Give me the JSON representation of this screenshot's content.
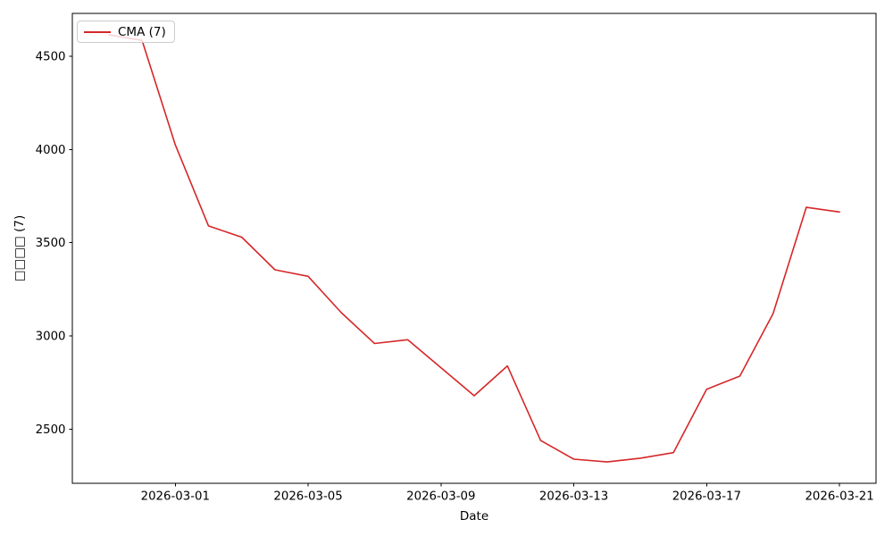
{
  "figure": {
    "background": "#ffffff",
    "plot_border_color": "#000000"
  },
  "chart_data": {
    "type": "line",
    "title": "",
    "xlabel": "Date",
    "ylabel": "□□□□ (7)",
    "grid": false,
    "legend_position": "upper left",
    "x": [
      "2026-02-27",
      "2026-02-28",
      "2026-03-01",
      "2026-03-02",
      "2026-03-03",
      "2026-03-04",
      "2026-03-05",
      "2026-03-06",
      "2026-03-07",
      "2026-03-08",
      "2026-03-09",
      "2026-03-10",
      "2026-03-11",
      "2026-03-12",
      "2026-03-13",
      "2026-03-14",
      "2026-03-15",
      "2026-03-16",
      "2026-03-17",
      "2026-03-18",
      "2026-03-19",
      "2026-03-20",
      "2026-03-21"
    ],
    "series": [
      {
        "name": "CMA (7)",
        "color": "#d62728",
        "values": [
          4615,
          4585,
          4025,
          3590,
          3530,
          3355,
          3320,
          3125,
          2960,
          2980,
          2830,
          2680,
          2840,
          2440,
          2340,
          2325,
          2345,
          2375,
          2715,
          2785,
          3120,
          3690,
          3665
        ]
      }
    ],
    "x_tick_labels": [
      "2026-03-01",
      "2026-03-05",
      "2026-03-09",
      "2026-03-13",
      "2026-03-17",
      "2026-03-21"
    ],
    "x_tick_indices": [
      2,
      6,
      10,
      14,
      18,
      22
    ],
    "y_ticks": [
      2500,
      3000,
      3500,
      4000,
      4500
    ],
    "ylim": [
      2210.5,
      4729.5
    ],
    "x_margin_ratio": 0.05
  }
}
